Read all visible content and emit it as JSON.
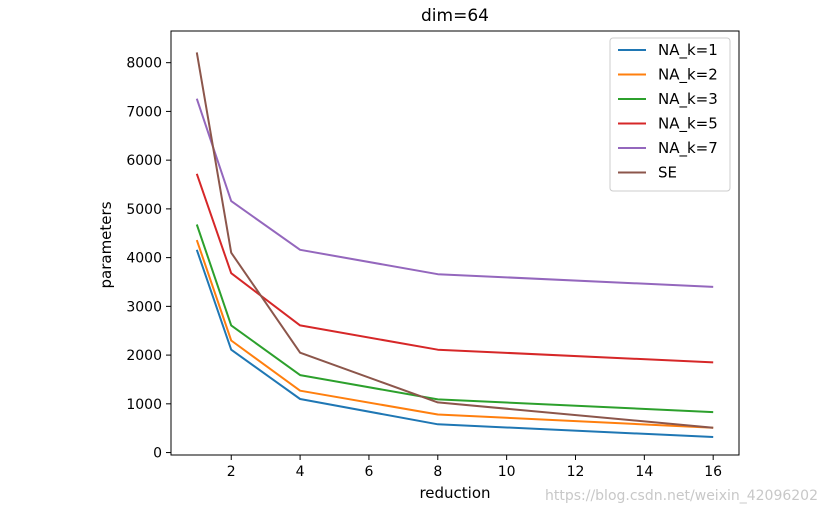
{
  "chart_data": {
    "type": "line",
    "title": "dim=64",
    "xlabel": "reduction",
    "ylabel": "parameters",
    "x": [
      1,
      2,
      4,
      8,
      16
    ],
    "xlim": [
      0.25,
      16.75
    ],
    "ylim": [
      -50,
      8650
    ],
    "xticks": [
      2,
      4,
      6,
      8,
      10,
      12,
      14,
      16
    ],
    "yticks": [
      0,
      1000,
      2000,
      3000,
      4000,
      5000,
      6000,
      7000,
      8000
    ],
    "legend_position": "top-right",
    "grid": false,
    "series": [
      {
        "name": "NA_k=1",
        "color": "#1f77b4",
        "values": [
          4160,
          2110,
          1100,
          580,
          320
        ]
      },
      {
        "name": "NA_k=2",
        "color": "#ff7f0e",
        "values": [
          4360,
          2300,
          1270,
          780,
          510
        ]
      },
      {
        "name": "NA_k=3",
        "color": "#2ca02c",
        "values": [
          4680,
          2610,
          1590,
          1090,
          830
        ]
      },
      {
        "name": "NA_k=5",
        "color": "#d62728",
        "values": [
          5720,
          3680,
          2610,
          2110,
          1850
        ]
      },
      {
        "name": "NA_k=7",
        "color": "#9467bd",
        "values": [
          7260,
          5160,
          4160,
          3660,
          3400
        ]
      },
      {
        "name": "SE",
        "color": "#8c564b",
        "values": [
          8210,
          4100,
          2050,
          1030,
          510
        ]
      }
    ]
  },
  "watermark": "https://blog.csdn.net/weixin_42096202"
}
